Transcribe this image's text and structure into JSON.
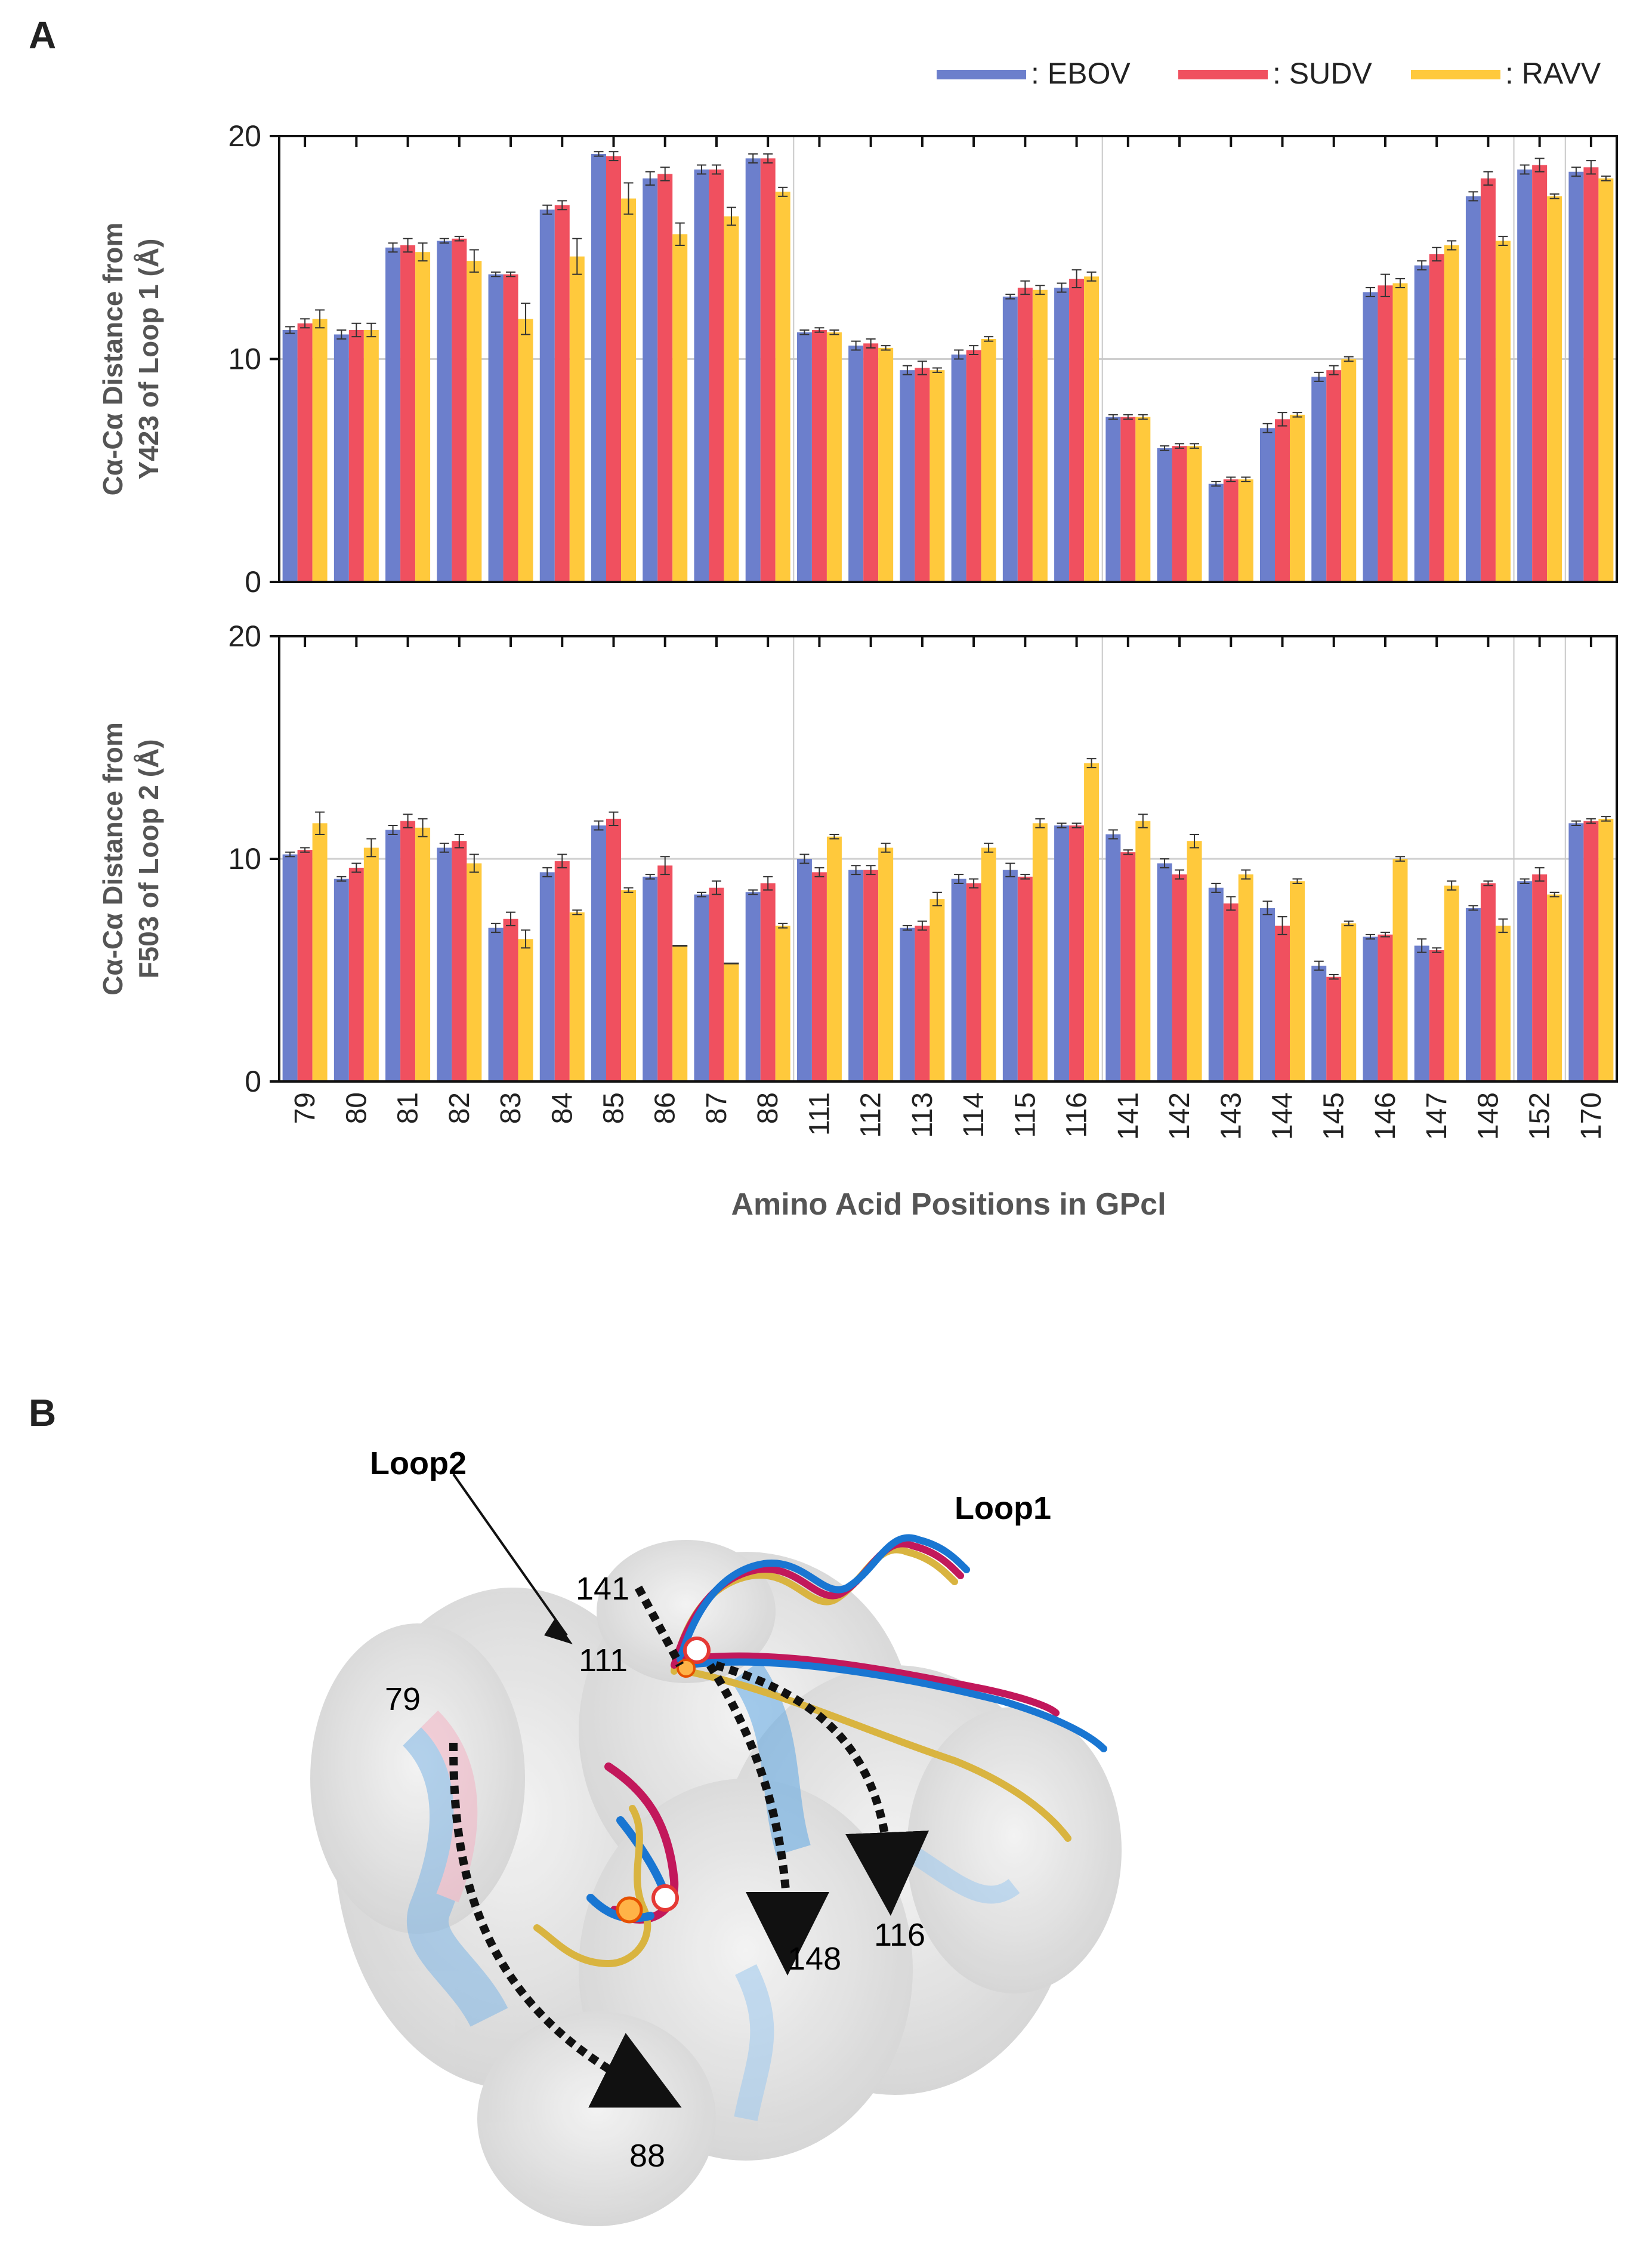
{
  "panel_a": {
    "label": "A",
    "xlabel": "Amino Acid Positions in GPcl",
    "legend": [
      {
        "name": ": EBOV",
        "color": "#6C7FCC"
      },
      {
        "name": ": SUDV",
        "color": "#F0505F"
      },
      {
        "name": ": RAVV",
        "color": "#FFC93C"
      }
    ]
  },
  "panel_b": {
    "label": "B",
    "loop2_label": "Loop2",
    "loop1_label": "Loop1",
    "residue_labels": [
      "79",
      "88",
      "111",
      "116",
      "141",
      "148"
    ]
  },
  "chart_data": [
    {
      "type": "bar",
      "ylabel_line1": "Cα-Cα Distance from",
      "ylabel_line2": "Y423 of Loop 1 (Å)",
      "ylim": [
        0,
        20
      ],
      "yticks": [
        "0",
        "10",
        "20"
      ],
      "categories": [
        "79",
        "80",
        "81",
        "82",
        "83",
        "84",
        "85",
        "86",
        "87",
        "88",
        "111",
        "112",
        "113",
        "114",
        "115",
        "116",
        "141",
        "142",
        "143",
        "144",
        "145",
        "146",
        "147",
        "148",
        "152",
        "170"
      ],
      "series": [
        {
          "name": "EBOV",
          "values": [
            11.3,
            11.1,
            15.0,
            15.3,
            13.8,
            16.7,
            19.2,
            18.1,
            18.5,
            19.0,
            11.2,
            10.6,
            9.5,
            10.2,
            12.8,
            13.2,
            7.4,
            6.0,
            4.4,
            6.9,
            9.2,
            13.0,
            14.2,
            17.3,
            18.5,
            18.4
          ]
        },
        {
          "name": "SUDV",
          "values": [
            11.6,
            11.3,
            15.1,
            15.4,
            13.8,
            16.9,
            19.1,
            18.3,
            18.5,
            19.0,
            11.3,
            10.7,
            9.6,
            10.4,
            13.2,
            13.6,
            7.4,
            6.1,
            4.6,
            7.3,
            9.5,
            13.3,
            14.7,
            18.1,
            18.7,
            18.6
          ]
        },
        {
          "name": "RAVV",
          "values": [
            11.8,
            11.3,
            14.8,
            14.4,
            11.8,
            14.6,
            17.2,
            15.6,
            16.4,
            17.5,
            11.2,
            10.5,
            9.5,
            10.9,
            13.1,
            13.7,
            7.4,
            6.1,
            4.6,
            7.5,
            10.0,
            13.4,
            15.1,
            15.3,
            17.3,
            18.1
          ]
        }
      ],
      "errors": [
        [
          0.15,
          0.2,
          0.2,
          0.1,
          0.1,
          0.2,
          0.1,
          0.3,
          0.2,
          0.2,
          0.1,
          0.2,
          0.2,
          0.2,
          0.1,
          0.2,
          0.1,
          0.1,
          0.1,
          0.2,
          0.2,
          0.2,
          0.2,
          0.2,
          0.2,
          0.2
        ],
        [
          0.2,
          0.3,
          0.3,
          0.1,
          0.1,
          0.2,
          0.2,
          0.3,
          0.2,
          0.2,
          0.1,
          0.2,
          0.3,
          0.2,
          0.3,
          0.4,
          0.1,
          0.1,
          0.1,
          0.3,
          0.2,
          0.5,
          0.3,
          0.3,
          0.3,
          0.3
        ],
        [
          0.4,
          0.3,
          0.4,
          0.5,
          0.7,
          0.8,
          0.7,
          0.5,
          0.4,
          0.2,
          0.1,
          0.1,
          0.1,
          0.1,
          0.2,
          0.2,
          0.1,
          0.1,
          0.1,
          0.1,
          0.1,
          0.2,
          0.2,
          0.2,
          0.1,
          0.1
        ]
      ]
    },
    {
      "type": "bar",
      "ylabel_line1": "Cα-Cα Distance from",
      "ylabel_line2": "F503 of Loop 2 (Å)",
      "ylim": [
        0,
        20
      ],
      "yticks": [
        "0",
        "10",
        "20"
      ],
      "categories": [
        "79",
        "80",
        "81",
        "82",
        "83",
        "84",
        "85",
        "86",
        "87",
        "88",
        "111",
        "112",
        "113",
        "114",
        "115",
        "116",
        "141",
        "142",
        "143",
        "144",
        "145",
        "146",
        "147",
        "148",
        "152",
        "170"
      ],
      "series": [
        {
          "name": "EBOV",
          "values": [
            10.2,
            9.1,
            11.3,
            10.5,
            6.9,
            9.4,
            11.5,
            9.2,
            8.4,
            8.5,
            10.0,
            9.5,
            6.9,
            9.1,
            9.5,
            11.5,
            11.1,
            9.8,
            8.7,
            7.8,
            5.2,
            6.5,
            6.1,
            7.8,
            9.0,
            11.6
          ]
        },
        {
          "name": "SUDV",
          "values": [
            10.4,
            9.6,
            11.7,
            10.8,
            7.3,
            9.9,
            11.8,
            9.7,
            8.7,
            8.9,
            9.4,
            9.5,
            7.0,
            8.9,
            9.2,
            11.5,
            10.3,
            9.3,
            8.0,
            7.0,
            4.7,
            6.6,
            5.9,
            8.9,
            9.3,
            11.7
          ]
        },
        {
          "name": "RAVV",
          "values": [
            11.6,
            10.5,
            11.4,
            9.8,
            6.4,
            7.6,
            8.6,
            6.1,
            5.3,
            7.0,
            11.0,
            10.5,
            8.2,
            10.5,
            11.6,
            14.3,
            11.7,
            10.8,
            9.3,
            9.0,
            7.1,
            10.0,
            8.8,
            7.0,
            8.4,
            11.8
          ]
        }
      ],
      "errors": [
        [
          0.1,
          0.1,
          0.2,
          0.2,
          0.2,
          0.2,
          0.2,
          0.1,
          0.1,
          0.1,
          0.2,
          0.2,
          0.1,
          0.2,
          0.3,
          0.1,
          0.2,
          0.2,
          0.2,
          0.3,
          0.2,
          0.1,
          0.3,
          0.1,
          0.1,
          0.1
        ],
        [
          0.1,
          0.2,
          0.3,
          0.3,
          0.3,
          0.3,
          0.3,
          0.4,
          0.3,
          0.3,
          0.2,
          0.2,
          0.2,
          0.2,
          0.1,
          0.1,
          0.1,
          0.2,
          0.3,
          0.4,
          0.1,
          0.1,
          0.1,
          0.1,
          0.3,
          0.1
        ],
        [
          0.5,
          0.4,
          0.4,
          0.4,
          0.4,
          0.1,
          0.1,
          0.0,
          0.0,
          0.1,
          0.1,
          0.2,
          0.3,
          0.2,
          0.2,
          0.2,
          0.3,
          0.3,
          0.2,
          0.1,
          0.1,
          0.1,
          0.2,
          0.3,
          0.1,
          0.1
        ]
      ]
    }
  ]
}
